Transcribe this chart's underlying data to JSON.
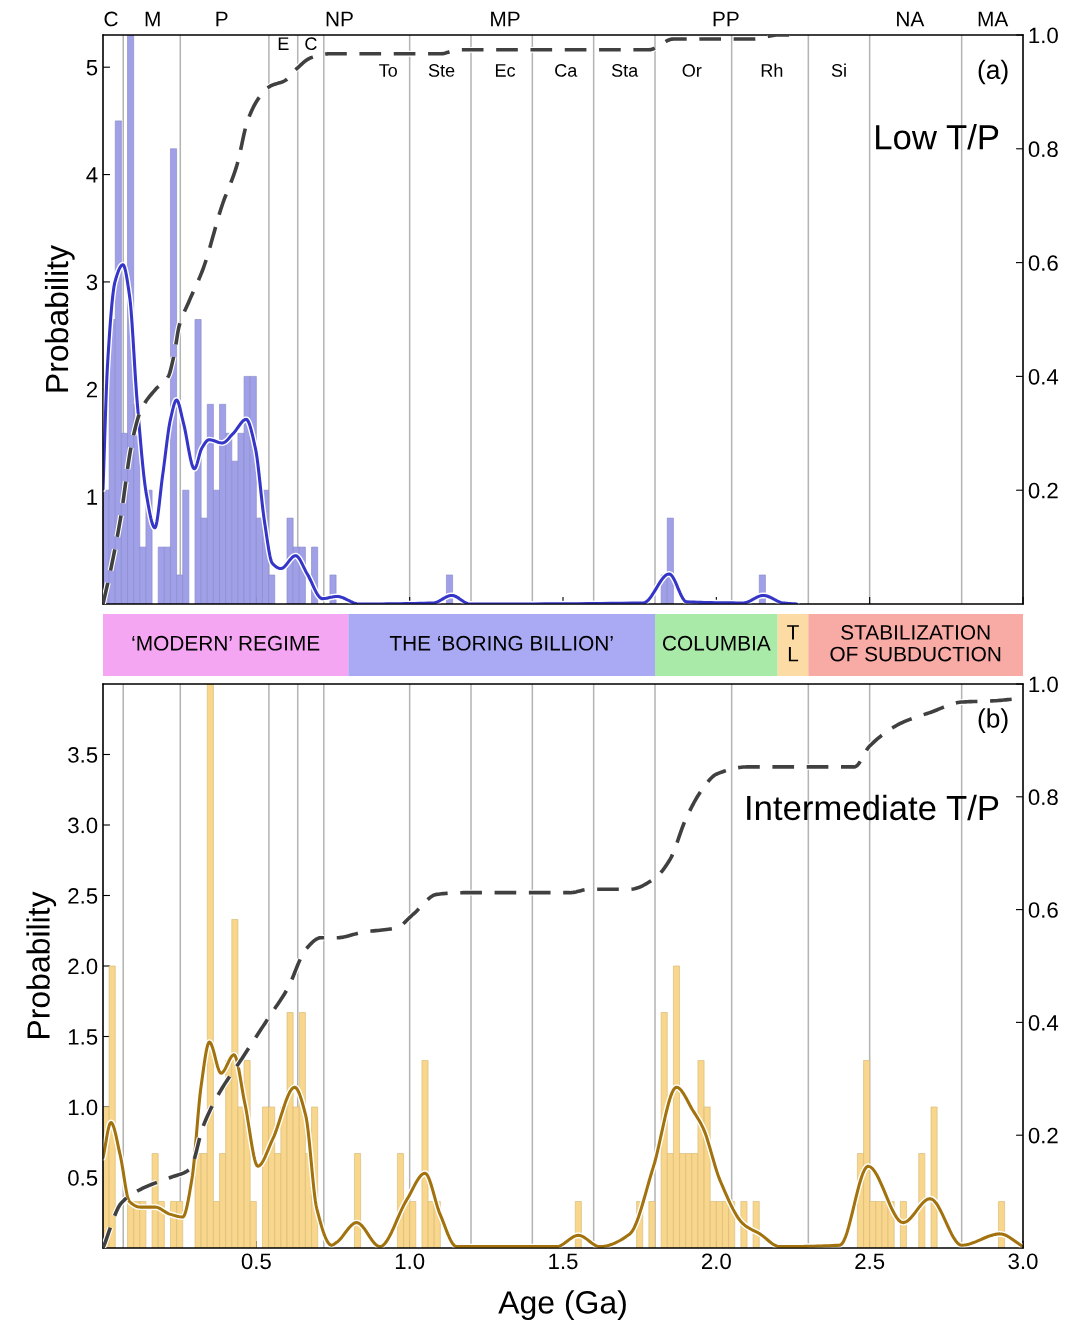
{
  "chart_data": [
    {
      "type": "histogram",
      "ylabel": "Probability",
      "xlim": [
        0,
        3
      ],
      "xticks": [
        {
          "value": 0.5,
          "label": null
        },
        {
          "value": 1.0,
          "label": null
        },
        {
          "value": 1.5,
          "label": null
        },
        {
          "value": 2.0,
          "label": null
        },
        {
          "value": 2.5,
          "label": null
        },
        {
          "value": 3.0,
          "label": null
        }
      ],
      "tick_labels": "y",
      "ylim": [
        0,
        5.3
      ],
      "yticks": [
        1,
        2,
        3,
        4,
        5
      ],
      "y2lim": [
        0,
        1
      ],
      "y2ticks": [
        {
          "value": 0.2,
          "label": "0.2"
        },
        {
          "value": 0.4,
          "label": "0.4"
        },
        {
          "value": 0.6,
          "label": "0.6"
        },
        {
          "value": 0.8,
          "label": "0.8"
        },
        {
          "value": 1.0,
          "label": "1.0"
        }
      ],
      "annotations": [
        "(a)",
        "Low T/P",
        "C",
        "M",
        "P",
        "NP",
        "MP",
        "PP",
        "NA",
        "MA",
        "E",
        "C",
        "To",
        "Ste",
        "Ec",
        "Ca",
        "Sta",
        "Or",
        "Rh",
        "Si"
      ],
      "series": [
        {
          "color": "#a0a0e8",
          "bins": [
            0,
            0.02,
            0.04,
            0.06,
            0.08,
            0.1,
            0.12,
            0.14,
            0.16,
            0.18,
            0.2,
            0.22,
            0.24,
            0.26,
            0.28,
            0.3,
            0.32,
            0.34,
            0.36,
            0.38,
            0.4,
            0.42,
            0.44,
            0.46,
            0.48,
            0.5,
            0.52,
            0.54,
            0.56,
            0.58,
            0.6,
            0.62,
            0.64,
            0.66,
            0.68,
            0.7,
            0.72,
            0.74,
            0.76,
            0.78,
            0.8,
            0.82,
            0.84,
            0.86,
            0.88,
            0.9,
            0.92,
            0.94,
            0.96,
            0.98,
            1.0,
            1.02,
            1.04,
            1.06,
            1.08,
            1.1,
            1.12,
            1.14,
            1.16,
            1.18,
            1.2,
            1.22,
            1.24,
            1.26,
            1.28,
            1.3,
            1.32,
            1.34,
            1.36,
            1.38,
            1.4,
            1.42,
            1.44,
            1.46,
            1.48,
            1.5,
            1.52,
            1.54,
            1.56,
            1.58,
            1.6,
            1.62,
            1.64,
            1.66,
            1.68,
            1.7,
            1.72,
            1.74,
            1.76,
            1.78,
            1.8,
            1.82,
            1.84,
            1.86,
            1.88,
            1.9,
            1.92,
            1.94,
            1.96,
            1.98,
            2.0,
            2.02,
            2.04,
            2.06,
            2.08,
            2.1,
            2.12,
            2.14,
            2.16,
            2.18,
            2.2
          ],
          "values": [
            1.06,
            2.65,
            4.5,
            1.59,
            5.3,
            1.86,
            0.53,
            1.06,
            0,
            0.53,
            0.53,
            4.24,
            0.27,
            1.06,
            0,
            2.65,
            0.8,
            1.86,
            1.06,
            1.86,
            1.59,
            1.33,
            1.59,
            2.12,
            2.12,
            0.8,
            1.06,
            0.27,
            0,
            0,
            0.8,
            0.53,
            0.53,
            0,
            0.53,
            0,
            0,
            0.27,
            0,
            0,
            0,
            0,
            0,
            0,
            0,
            0,
            0,
            0,
            0,
            0,
            0,
            0,
            0,
            0,
            0,
            0,
            0.27,
            0,
            0,
            0,
            0,
            0,
            0,
            0,
            0,
            0,
            0,
            0,
            0,
            0,
            0,
            0,
            0,
            0,
            0,
            0,
            0,
            0,
            0,
            0,
            0,
            0,
            0,
            0,
            0,
            0,
            0,
            0,
            0,
            0,
            0,
            0.27,
            0.8,
            0,
            0,
            0,
            0,
            0,
            0,
            0,
            0,
            0,
            0,
            0,
            0,
            0,
            0,
            0.27,
            0,
            0
          ]
        },
        {
          "type": "line",
          "color": "#3535c8",
          "x": [
            0,
            0.015,
            0.039,
            0.065,
            0.087,
            0.111,
            0.141,
            0.169,
            0.195,
            0.22,
            0.24,
            0.262,
            0.298,
            0.322,
            0.346,
            0.389,
            0.425,
            0.467,
            0.497,
            0.527,
            0.552,
            0.58,
            0.628,
            0.666,
            0.715,
            0.763,
            0.836,
            1.077,
            1.137,
            1.197,
            1.762,
            1.846,
            1.903,
            2.088,
            2.153,
            2.218,
            2.262
          ],
          "values": [
            1.07,
            2.24,
            3.0,
            3.16,
            2.86,
            1.9,
            1.03,
            0.71,
            1.21,
            1.72,
            1.9,
            1.69,
            1.26,
            1.45,
            1.53,
            1.5,
            1.59,
            1.72,
            1.45,
            0.76,
            0.38,
            0.33,
            0.45,
            0.28,
            0.05,
            0.07,
            0,
            0.01,
            0.08,
            0,
            0.01,
            0.28,
            0.02,
            0.01,
            0.08,
            0.01,
            0
          ]
        },
        {
          "type": "line",
          "axis": "y2",
          "color": "#404040",
          "line_style": "dashed",
          "x": [
            0,
            0.027,
            0.057,
            0.093,
            0.123,
            0.171,
            0.213,
            0.231,
            0.249,
            0.279,
            0.327,
            0.388,
            0.436,
            0.472,
            0.509,
            0.545,
            0.594,
            0.63,
            0.678,
            0.739,
            0.85,
            1.1,
            1.16,
            1.78,
            1.86,
            2.12,
            2.2,
            2.24
          ],
          "values": [
            0,
            0.065,
            0.15,
            0.28,
            0.34,
            0.377,
            0.4,
            0.436,
            0.49,
            0.53,
            0.59,
            0.7,
            0.77,
            0.85,
            0.89,
            0.91,
            0.92,
            0.94,
            0.96,
            0.967,
            0.967,
            0.967,
            0.974,
            0.974,
            0.993,
            0.993,
            1.0,
            1.0
          ]
        }
      ],
      "ref_lines": [
        {
          "axis": "x",
          "value": 0.066
        },
        {
          "axis": "x",
          "value": 0.252
        },
        {
          "axis": "x",
          "value": 0.541
        },
        {
          "axis": "x",
          "value": 0.635
        },
        {
          "axis": "x",
          "value": 0.72
        },
        {
          "axis": "x",
          "value": 1.0
        },
        {
          "axis": "x",
          "value": 1.2
        },
        {
          "axis": "x",
          "value": 1.4
        },
        {
          "axis": "x",
          "value": 1.6
        },
        {
          "axis": "x",
          "value": 1.8
        },
        {
          "axis": "x",
          "value": 2.05
        },
        {
          "axis": "x",
          "value": 2.3
        },
        {
          "axis": "x",
          "value": 2.5
        },
        {
          "axis": "x",
          "value": 2.8
        }
      ]
    },
    {
      "type": "bar",
      "orientation": "horizontal",
      "stacked": true,
      "xlim": [
        0,
        3
      ],
      "tick_labels": false,
      "categories": [
        null
      ],
      "series": [
        {
          "name": "‘MODERN’ REGIME",
          "color": "#f4a6f2",
          "values": [
            0.8
          ]
        },
        {
          "name": "THE ‘BORING BILLION’",
          "color": "#aaaaf4",
          "values": [
            1.0
          ]
        },
        {
          "name": "COLUMBIA",
          "color": "#aaeaa8",
          "values": [
            0.4
          ]
        },
        {
          "name": "T\nL",
          "color": "#fcdca4",
          "values": [
            0.1
          ]
        },
        {
          "name": "STABILIZATION\nOF SUBDUCTION",
          "color": "#f8aaa4",
          "values": [
            0.7
          ]
        }
      ]
    },
    {
      "type": "histogram",
      "ylabel": "Probability",
      "xlabel": "Age (Ga)",
      "xlim": [
        0,
        3
      ],
      "xticks": [
        0.5,
        {
          "value": 1.0,
          "label": "1.0"
        },
        1.5,
        {
          "value": 2.0,
          "label": "2.0"
        },
        2.5,
        {
          "value": 3.0,
          "label": "3.0"
        }
      ],
      "ylim": [
        0,
        4.0
      ],
      "yticks": [
        0.5,
        {
          "value": 1.0,
          "label": "1.0"
        },
        1.5,
        {
          "value": 2.0,
          "label": "2.0"
        },
        2.5,
        {
          "value": 3.0,
          "label": "3.0"
        },
        3.5
      ],
      "y2lim": [
        0,
        1
      ],
      "y2ticks": [
        {
          "value": 0.2,
          "label": "0.2"
        },
        {
          "value": 0.4,
          "label": "0.4"
        },
        {
          "value": 0.6,
          "label": "0.6"
        },
        {
          "value": 0.8,
          "label": "0.8"
        },
        {
          "value": 1.0,
          "label": "1.0"
        }
      ],
      "annotations": [
        "(b)",
        "Intermediate T/P"
      ],
      "series": [
        {
          "color": "#f8d68c",
          "bins": [
            0,
            0.02,
            0.04,
            0.06,
            0.08,
            0.1,
            0.12,
            0.14,
            0.16,
            0.18,
            0.2,
            0.22,
            0.24,
            0.26,
            0.28,
            0.3,
            0.32,
            0.34,
            0.36,
            0.38,
            0.4,
            0.42,
            0.44,
            0.46,
            0.48,
            0.5,
            0.52,
            0.54,
            0.56,
            0.58,
            0.6,
            0.62,
            0.64,
            0.66,
            0.68,
            0.7,
            0.72,
            0.74,
            0.76,
            0.78,
            0.8,
            0.82,
            0.84,
            0.86,
            0.88,
            0.9,
            0.92,
            0.94,
            0.96,
            0.98,
            1.0,
            1.02,
            1.04,
            1.06,
            1.08,
            1.1,
            1.12,
            1.14,
            1.16,
            1.18,
            1.2,
            1.22,
            1.24,
            1.26,
            1.28,
            1.3,
            1.32,
            1.34,
            1.36,
            1.38,
            1.4,
            1.42,
            1.44,
            1.46,
            1.48,
            1.5,
            1.52,
            1.54,
            1.56,
            1.58,
            1.6,
            1.62,
            1.64,
            1.66,
            1.68,
            1.7,
            1.72,
            1.74,
            1.76,
            1.78,
            1.8,
            1.82,
            1.84,
            1.86,
            1.88,
            1.9,
            1.92,
            1.94,
            1.96,
            1.98,
            2.0,
            2.02,
            2.04,
            2.06,
            2.08,
            2.1,
            2.12,
            2.14,
            2.16,
            2.18,
            2.2,
            2.22,
            2.24,
            2.26,
            2.28,
            2.3,
            2.32,
            2.34,
            2.36,
            2.38,
            2.4,
            2.42,
            2.44,
            2.46,
            2.48,
            2.5,
            2.52,
            2.54,
            2.56,
            2.58,
            2.6,
            2.62,
            2.64,
            2.66,
            2.68,
            2.7,
            2.72,
            2.74,
            2.76,
            2.78,
            2.8,
            2.82,
            2.84,
            2.86,
            2.88,
            2.9,
            2.92,
            2.94,
            2.96,
            2.98,
            3.0
          ],
          "values": [
            1.0,
            2.0,
            0,
            0,
            0.33,
            0.33,
            0.33,
            0,
            0.67,
            0.33,
            0,
            0.33,
            0.33,
            0,
            0,
            0.67,
            0.67,
            4.0,
            0.33,
            0.67,
            1.33,
            2.33,
            1.0,
            1.33,
            0.33,
            0,
            1.0,
            1.0,
            0.67,
            1.0,
            1.67,
            1.0,
            1.67,
            0.67,
            1.0,
            0,
            0,
            0,
            0,
            0,
            0,
            0.67,
            0,
            0,
            0,
            0,
            0,
            0,
            0.67,
            0.33,
            0.33,
            0,
            1.33,
            0.33,
            0.33,
            0,
            0,
            0,
            0,
            0,
            0,
            0,
            0,
            0,
            0,
            0,
            0,
            0,
            0,
            0,
            0,
            0,
            0,
            0,
            0,
            0,
            0,
            0.33,
            0,
            0,
            0,
            0,
            0,
            0,
            0,
            0,
            0,
            0.33,
            0,
            0.33,
            0,
            1.67,
            0.67,
            2.0,
            0.67,
            0.67,
            0.67,
            1.33,
            1.0,
            0.33,
            0.33,
            0.33,
            0.33,
            0,
            0.33,
            0,
            0.33,
            0,
            0,
            0,
            0,
            0,
            0,
            0,
            0,
            0,
            0,
            0,
            0,
            0,
            0,
            0,
            0,
            0.67,
            1.33,
            0.33,
            0.33,
            0.33,
            0.33,
            0,
            0.33,
            0,
            0,
            0.67,
            0,
            1.0,
            0,
            0,
            0,
            0,
            0,
            0,
            0,
            0,
            0,
            0,
            0.33,
            0,
            0,
            0
          ]
        },
        {
          "type": "line",
          "color": "#a2720e",
          "x": [
            0,
            0.026,
            0.056,
            0.086,
            0.122,
            0.17,
            0.218,
            0.26,
            0.29,
            0.32,
            0.347,
            0.385,
            0.427,
            0.463,
            0.505,
            0.553,
            0.625,
            0.661,
            0.697,
            0.745,
            0.762,
            0.827,
            0.903,
            0.99,
            1.05,
            1.099,
            1.153,
            1.479,
            1.55,
            1.62,
            1.718,
            1.794,
            1.87,
            1.925,
            1.957,
            2.012,
            2.088,
            2.142,
            2.207,
            2.403,
            2.495,
            2.609,
            2.697,
            2.8,
            2.925,
            3.0
          ],
          "values": [
            0.64,
            0.89,
            0.66,
            0.33,
            0.29,
            0.29,
            0.24,
            0.22,
            0.49,
            1.15,
            1.46,
            1.24,
            1.37,
            1.02,
            0.58,
            0.77,
            1.14,
            0.94,
            0.28,
            0.02,
            0.04,
            0.18,
            0.01,
            0.34,
            0.53,
            0.24,
            0.01,
            0.01,
            0.09,
            0.01,
            0.1,
            0.57,
            1.14,
            0.97,
            0.85,
            0.48,
            0.17,
            0.1,
            0.01,
            0.02,
            0.58,
            0.18,
            0.35,
            0.02,
            0.1,
            0.01
          ]
        },
        {
          "type": "line",
          "axis": "y2",
          "color": "#404040",
          "line_style": "dashed",
          "x": [
            0,
            0.06,
            0.13,
            0.22,
            0.284,
            0.326,
            0.374,
            0.458,
            0.542,
            0.602,
            0.662,
            0.71,
            0.76,
            0.849,
            0.958,
            1.012,
            1.088,
            1.175,
            1.522,
            1.587,
            1.718,
            1.8,
            1.85,
            1.9,
            1.95,
            2.0,
            2.1,
            2.45,
            2.5,
            2.6,
            2.7,
            2.8,
            2.9,
            3.0
          ],
          "values": [
            0,
            0.08,
            0.106,
            0.125,
            0.14,
            0.215,
            0.27,
            0.34,
            0.41,
            0.46,
            0.53,
            0.55,
            0.55,
            0.56,
            0.568,
            0.592,
            0.627,
            0.63,
            0.63,
            0.636,
            0.636,
            0.656,
            0.69,
            0.76,
            0.81,
            0.84,
            0.853,
            0.853,
            0.89,
            0.93,
            0.95,
            0.968,
            0.97,
            0.975
          ]
        }
      ],
      "ref_lines": [
        {
          "axis": "x",
          "value": 0.066
        },
        {
          "axis": "x",
          "value": 0.252
        },
        {
          "axis": "x",
          "value": 0.541
        },
        {
          "axis": "x",
          "value": 0.635
        },
        {
          "axis": "x",
          "value": 0.72
        },
        {
          "axis": "x",
          "value": 1.0
        },
        {
          "axis": "x",
          "value": 1.2
        },
        {
          "axis": "x",
          "value": 1.4
        },
        {
          "axis": "x",
          "value": 1.6
        },
        {
          "axis": "x",
          "value": 1.8
        },
        {
          "axis": "x",
          "value": 2.05
        },
        {
          "axis": "x",
          "value": 2.3
        },
        {
          "axis": "x",
          "value": 2.5
        },
        {
          "axis": "x",
          "value": 2.8
        }
      ]
    }
  ]
}
